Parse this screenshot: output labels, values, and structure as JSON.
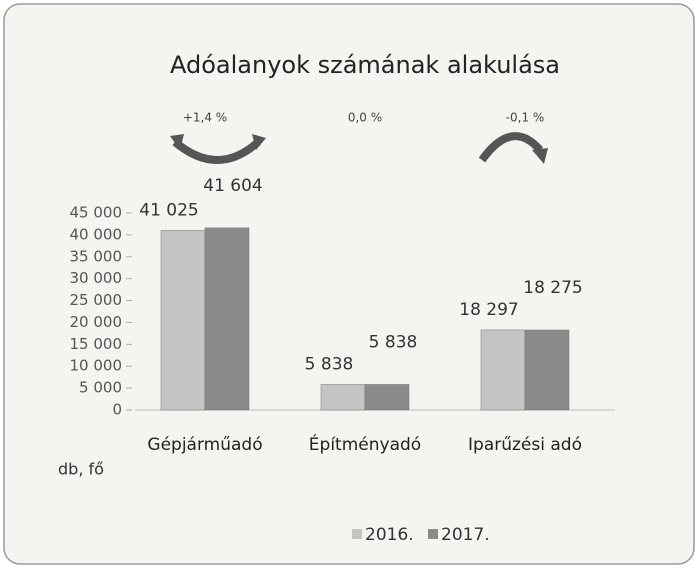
{
  "chart_data": {
    "type": "bar",
    "title": "Adóalanyok számának alakulása",
    "categories": [
      "Gépjárműadó",
      "Építményadó",
      "Iparűzési adó"
    ],
    "series": [
      {
        "name": "2016.",
        "color": "#c4c4c2",
        "values": [
          41025,
          5838,
          18297
        ],
        "value_labels": [
          "41 025",
          "5 838",
          "18 297"
        ]
      },
      {
        "name": "2017.",
        "color": "#8a8a88",
        "values": [
          41604,
          5838,
          18275
        ],
        "value_labels": [
          "41 604",
          "5 838",
          "18 275"
        ]
      }
    ],
    "annotations": [
      "+1,4 %",
      "0,0 %",
      "-0,1 %"
    ],
    "y_axis_label": "db, fő",
    "ylim": [
      0,
      45000
    ],
    "yticks": [
      0,
      {
        "value": 5000,
        "label": "5 000"
      },
      {
        "value": 10000,
        "label": "10 000"
      },
      {
        "value": 15000,
        "label": "15 000"
      },
      {
        "value": 20000,
        "label": "20 000"
      },
      {
        "value": 25000,
        "label": "25 000"
      },
      {
        "value": 30000,
        "label": "30 000"
      },
      {
        "value": 35000,
        "label": "35 000"
      },
      {
        "value": 40000,
        "label": "40 000"
      },
      {
        "value": 45000,
        "label": "45 000"
      }
    ],
    "grid": false,
    "legend": "bottom"
  }
}
